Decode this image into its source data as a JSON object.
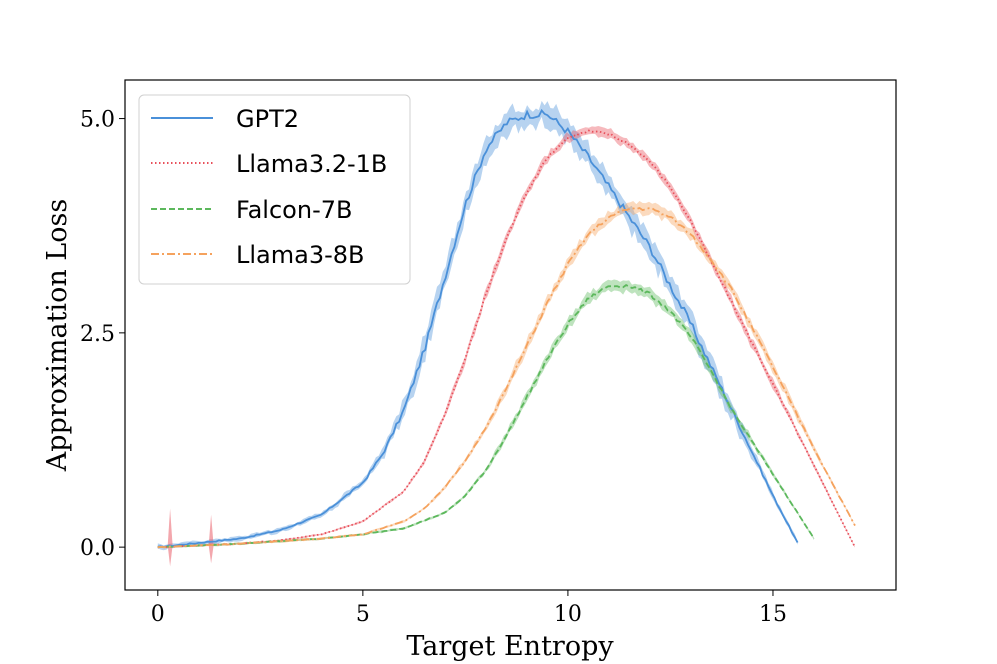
{
  "chart_data": {
    "type": "line",
    "title": "",
    "xlabel": "Target Entropy",
    "ylabel": "Approximation Loss",
    "xlim": [
      -0.8,
      18.0
    ],
    "ylim": [
      -0.5,
      5.45
    ],
    "xticks": [
      0,
      5,
      10,
      15
    ],
    "xtick_labels": [
      "0",
      "5",
      "10",
      "15"
    ],
    "yticks": [
      0.0,
      2.5,
      5.0
    ],
    "ytick_labels": [
      "0.0",
      "2.5",
      "5.0"
    ],
    "grid": false,
    "legend_position": "top-left",
    "series": [
      {
        "name": "GPT2",
        "color": "#4a90d9",
        "style": "solid",
        "x": [
          0,
          1,
          2,
          3,
          4,
          5,
          5.5,
          6,
          6.5,
          7,
          7.5,
          8,
          8.5,
          9,
          9.5,
          10,
          10.5,
          11,
          12,
          13,
          14,
          15,
          15.6
        ],
        "y": [
          0.0,
          0.05,
          0.1,
          0.2,
          0.38,
          0.75,
          1.1,
          1.6,
          2.3,
          3.15,
          4.0,
          4.65,
          4.95,
          5.05,
          5.05,
          4.85,
          4.55,
          4.2,
          3.5,
          2.6,
          1.6,
          0.6,
          0.05
        ],
        "band": 0.13
      },
      {
        "name": "Llama3.2-1B",
        "color": "#e8505b",
        "style": "dotted",
        "x": [
          0,
          1,
          2,
          3,
          4,
          5,
          6,
          6.5,
          7,
          7.5,
          8,
          8.5,
          9,
          9.5,
          10,
          10.5,
          11,
          11.5,
          12,
          12.5,
          13,
          14,
          15,
          16,
          17
        ],
        "y": [
          0.0,
          0.02,
          0.04,
          0.08,
          0.15,
          0.3,
          0.65,
          1.0,
          1.55,
          2.2,
          2.95,
          3.6,
          4.15,
          4.55,
          4.78,
          4.85,
          4.82,
          4.7,
          4.5,
          4.2,
          3.8,
          2.85,
          1.9,
          0.95,
          0.0
        ],
        "band": 0.05
      },
      {
        "name": "Falcon-7B",
        "color": "#5cb85c",
        "style": "dashed",
        "x": [
          0,
          1,
          2,
          3,
          4,
          5,
          6,
          7,
          7.5,
          8,
          8.5,
          9,
          9.5,
          10,
          10.5,
          11,
          11.5,
          12,
          12.5,
          13,
          13.5,
          14,
          15,
          16
        ],
        "y": [
          0.0,
          0.02,
          0.04,
          0.07,
          0.1,
          0.15,
          0.22,
          0.4,
          0.6,
          0.9,
          1.3,
          1.75,
          2.2,
          2.6,
          2.9,
          3.05,
          3.05,
          2.95,
          2.75,
          2.45,
          2.05,
          1.6,
          0.85,
          0.1
        ],
        "band": 0.06
      },
      {
        "name": "Llama3-8B",
        "color": "#f5a25d",
        "style": "dashdot",
        "x": [
          0,
          1,
          2,
          3,
          4,
          5,
          6,
          6.5,
          7,
          7.5,
          8,
          8.5,
          9,
          9.5,
          10,
          10.5,
          11,
          11.5,
          12,
          12.5,
          13,
          13.5,
          14,
          15,
          16,
          17
        ],
        "y": [
          0.0,
          0.02,
          0.04,
          0.07,
          0.1,
          0.15,
          0.3,
          0.45,
          0.7,
          1.0,
          1.4,
          1.85,
          2.35,
          2.85,
          3.3,
          3.65,
          3.85,
          3.95,
          3.95,
          3.85,
          3.65,
          3.35,
          3.0,
          2.1,
          1.15,
          0.25
        ],
        "band": 0.06
      }
    ]
  }
}
